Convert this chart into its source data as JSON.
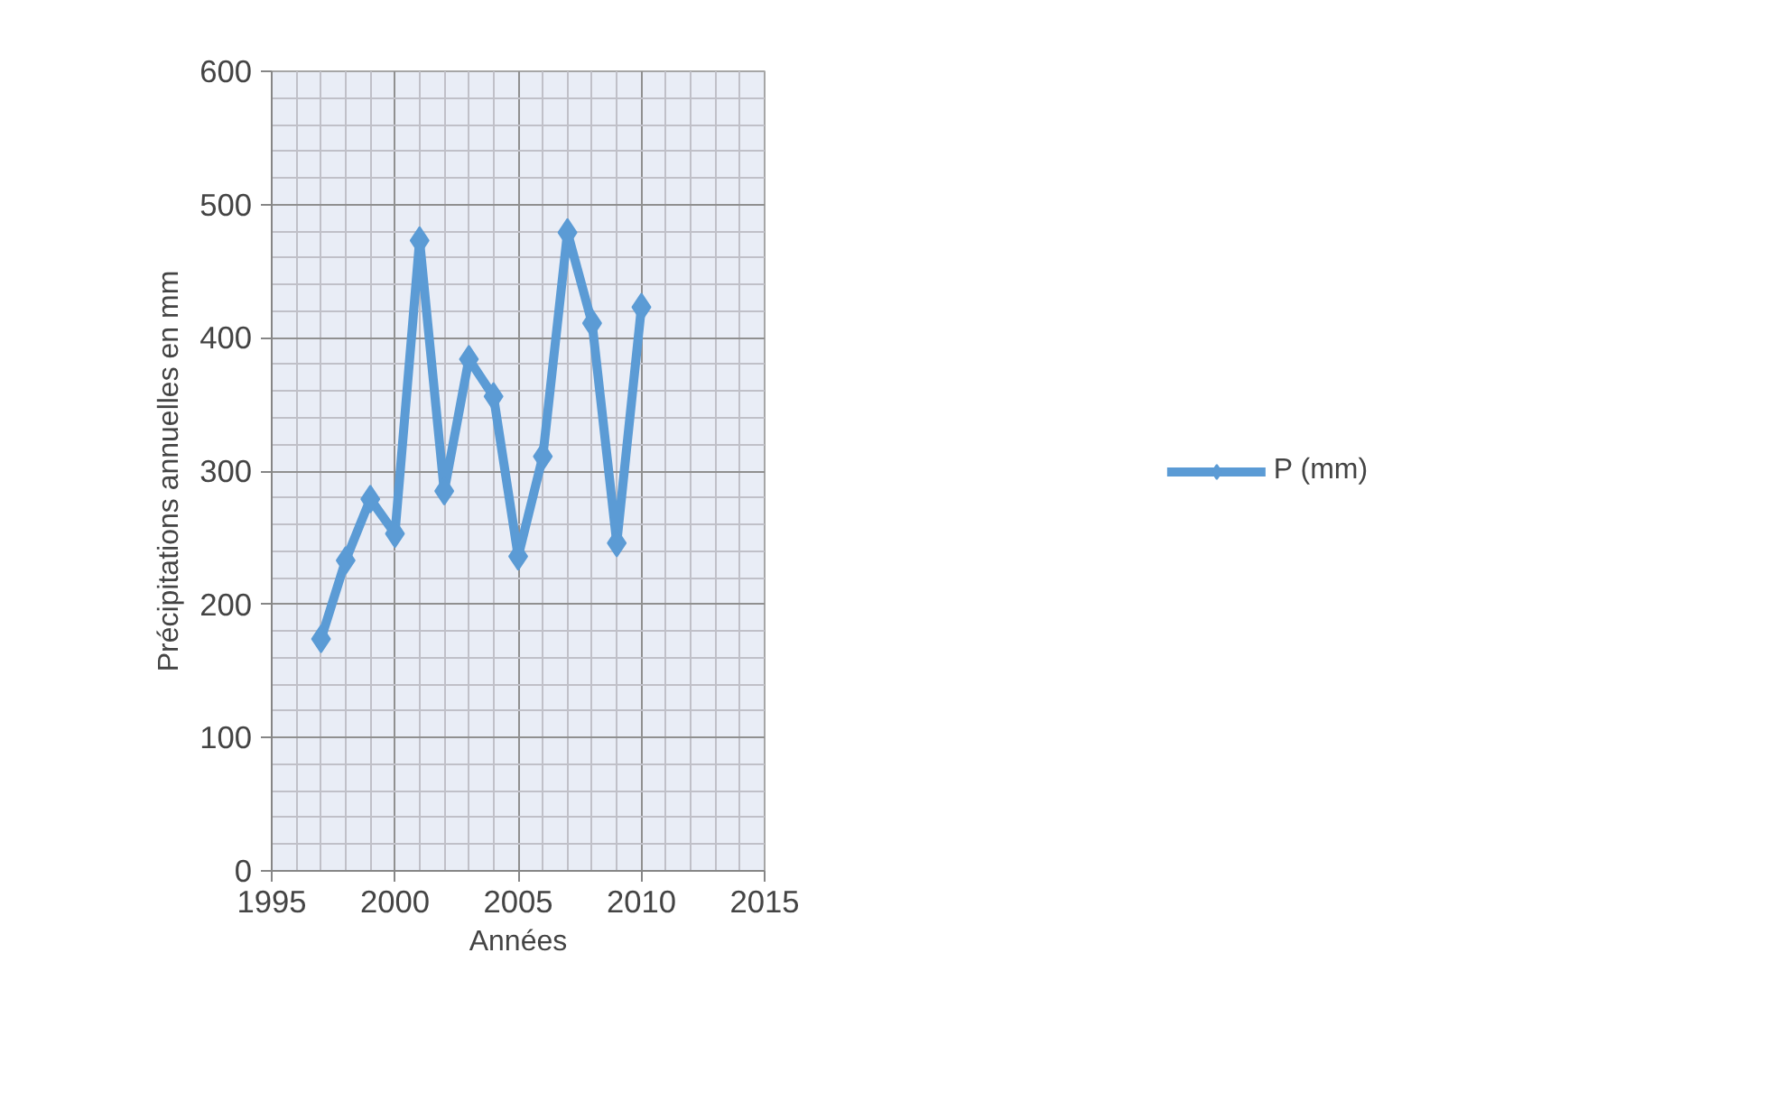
{
  "chart_data": {
    "type": "line",
    "xlabel": "Années",
    "ylabel": "Précipitations annuelles en mm",
    "x": [
      1997,
      1998,
      1999,
      2000,
      2001,
      2002,
      2003,
      2004,
      2005,
      2006,
      2007,
      2008,
      2009,
      2010
    ],
    "series": [
      {
        "name": "P (mm)",
        "color": "#5b9bd5",
        "values": [
          174,
          233,
          279,
          253,
          473,
          285,
          384,
          356,
          236,
          311,
          479,
          411,
          246,
          423
        ]
      }
    ],
    "xlim": [
      1995,
      2015
    ],
    "xticks": [
      1995,
      2000,
      2005,
      2010,
      2015
    ],
    "ylim": [
      0,
      600
    ],
    "yticks": [
      0,
      100,
      200,
      300,
      400,
      500,
      600
    ],
    "grid": true,
    "legend": "right",
    "marker": "diamond",
    "line_style": "solid"
  }
}
